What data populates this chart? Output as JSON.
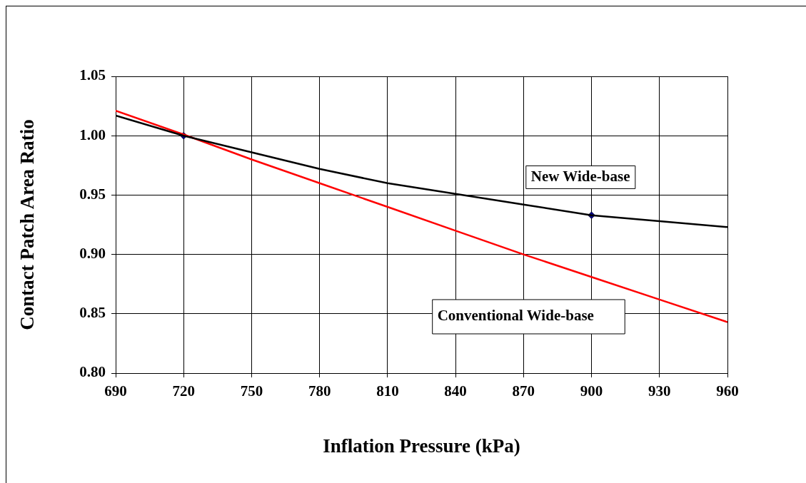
{
  "chart_data": {
    "type": "line",
    "xlabel": "Inflation Pressure (kPa)",
    "ylabel": "Contact Patch Area Ratio",
    "xlim": [
      690,
      960
    ],
    "xticks": [
      690,
      720,
      750,
      780,
      810,
      840,
      870,
      900,
      930,
      960
    ],
    "ylim": [
      0.8,
      1.05
    ],
    "yticks": [
      {
        "value": 0.8,
        "label": "0.80"
      },
      {
        "value": 0.85,
        "label": "0.85"
      },
      {
        "value": 0.9,
        "label": "0.90"
      },
      {
        "value": 0.95,
        "label": "0.95"
      },
      {
        "value": 1.0,
        "label": "1.00"
      },
      {
        "value": 1.05,
        "label": "1.05"
      }
    ],
    "grid": true,
    "legend": false,
    "series": [
      {
        "name": "New Wide-base",
        "color": "#000000",
        "x": [
          690,
          720,
          750,
          780,
          810,
          840,
          870,
          900,
          930,
          960
        ],
        "values": [
          1.017,
          1.0,
          0.986,
          0.972,
          0.96,
          0.951,
          0.942,
          0.933,
          0.928,
          0.923
        ]
      },
      {
        "name": "Conventional Wide-base",
        "color": "#ff0000",
        "x": [
          690,
          720,
          750,
          780,
          810,
          840,
          870,
          900,
          930,
          960
        ],
        "values": [
          1.021,
          1.001,
          0.98,
          0.96,
          0.94,
          0.92,
          0.9,
          0.881,
          0.862,
          0.843
        ]
      },
      {
        "type": "scatter",
        "marker": "diamond",
        "color": "#000080",
        "x": [
          720,
          900
        ],
        "values": [
          1.0,
          0.933
        ]
      }
    ]
  }
}
